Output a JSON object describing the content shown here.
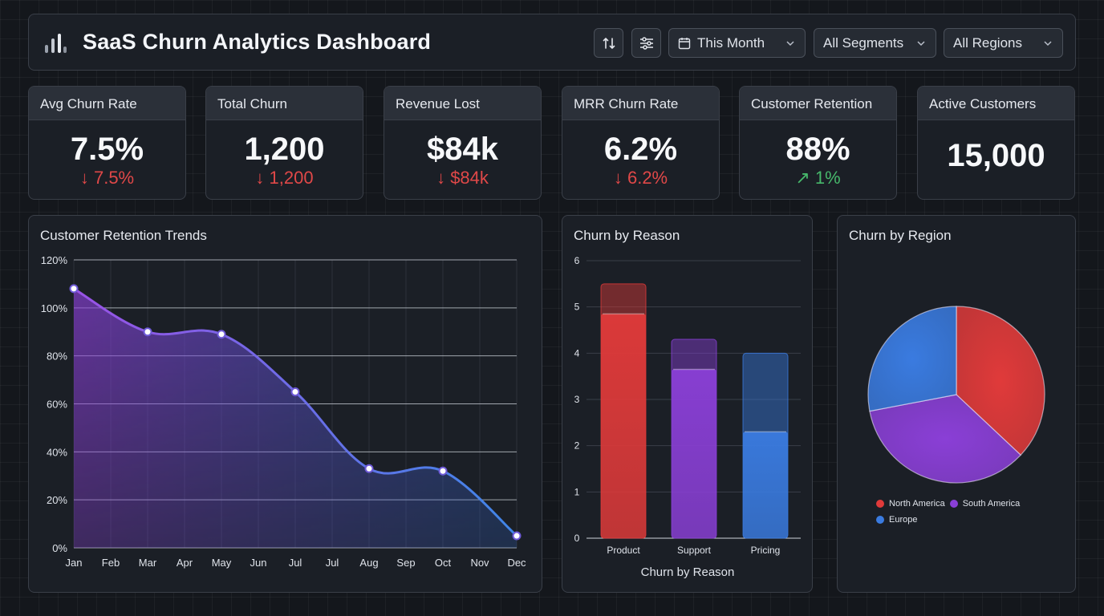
{
  "header": {
    "title": "SaaS Churn Analytics Dashboard",
    "icons": [
      "bar-chart-logo-icon",
      "sort-icon",
      "filter-sliders-icon"
    ],
    "filters": {
      "period": "This Month",
      "segment": "All Segments",
      "region": "All Regions"
    }
  },
  "kpis": [
    {
      "label": "Avg Churn Rate",
      "value": "7.5%",
      "delta": "↓ 7.5%",
      "trend": "down"
    },
    {
      "label": "Total Churn",
      "value": "1,200",
      "delta": "↓ 1,200",
      "trend": "down"
    },
    {
      "label": "Revenue Lost",
      "value": "$84k",
      "delta": "↓ $84k",
      "trend": "down"
    },
    {
      "label": "MRR Churn Rate",
      "value": "6.2%",
      "delta": "↓ 6.2%",
      "trend": "down"
    },
    {
      "label": "Customer Retention",
      "value": "88%",
      "delta": "↗ 1%",
      "trend": "up"
    },
    {
      "label": "Active Customers",
      "value": "15,000",
      "delta": "",
      "trend": "none"
    }
  ],
  "colors": {
    "accent_red": "#e03a3a",
    "accent_purple": "#8a3fd6",
    "accent_blue": "#3a7be0",
    "delta_down": "#e04848",
    "delta_up": "#47b86b"
  },
  "chart_data": [
    {
      "type": "area",
      "title": "Customer Retention Trends",
      "x": [
        "Jan",
        "Feb",
        "Mar",
        "Apr",
        "May",
        "Jun",
        "Jul",
        "Jul",
        "Aug",
        "Sep",
        "Oct",
        "Nov",
        "Dec"
      ],
      "points": [
        {
          "x": "Jan",
          "y": 108
        },
        {
          "x": "Mar",
          "y": 90
        },
        {
          "x": "May",
          "y": 89
        },
        {
          "x": "Jul",
          "y": 65
        },
        {
          "x": "Aug",
          "y": 33
        },
        {
          "x": "Oct",
          "y": 32
        },
        {
          "x": "Dec",
          "y": 5
        }
      ],
      "ylim": [
        0,
        120
      ],
      "yticks": [
        "0%",
        "20%",
        "40%",
        "60%",
        "80%",
        "100%",
        "120%"
      ],
      "grid": true
    },
    {
      "type": "bar",
      "title": "Churn by Reason",
      "xlabel": "Churn by Reason",
      "categories": [
        "Product",
        "Support",
        "Pricing"
      ],
      "values": [
        4.85,
        3.65,
        2.3
      ],
      "totals": [
        5.5,
        4.3,
        4.0
      ],
      "ylim": [
        0,
        6
      ],
      "yticks": [
        "0",
        "1",
        "2",
        "3",
        "4",
        "5",
        "6"
      ],
      "colors": [
        "#e03a3a",
        "#8a3fd6",
        "#3a7be0"
      ],
      "grid": true
    },
    {
      "type": "pie",
      "title": "Churn by Region",
      "labels": [
        "North America",
        "South America",
        "Europe"
      ],
      "values": [
        37,
        35,
        28
      ],
      "colors": [
        "#e03a3a",
        "#8a3fd6",
        "#3a7be0"
      ],
      "legend": "bottom"
    }
  ]
}
